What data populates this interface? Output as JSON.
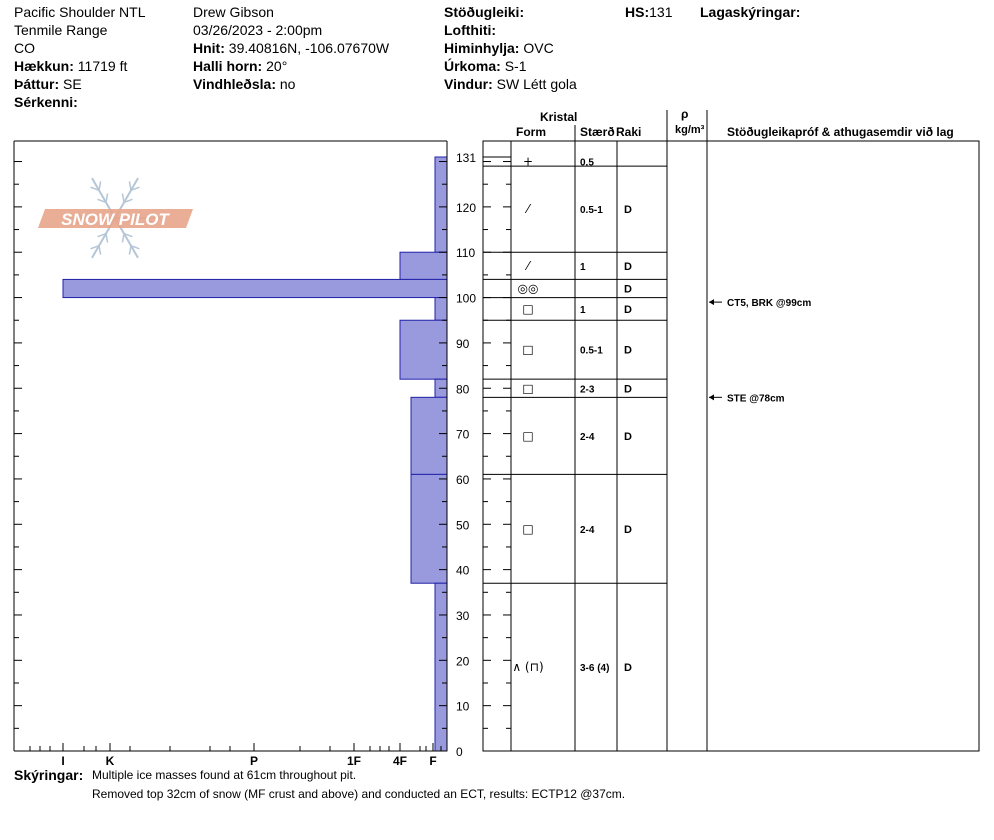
{
  "header": {
    "location": "Pacific Shoulder NTL",
    "range": "Tenmile Range",
    "state": "CO",
    "elevation_label": "Hækkun:",
    "elevation_value": "11719 ft",
    "aspect_label": "Þáttur:",
    "aspect_value": "SE",
    "features_label": "Sérkenni:",
    "observer": "Drew Gibson",
    "datetime": "03/26/2023 - 2:00pm",
    "coords_label": "Hnit:",
    "coords_value": "39.40816N, -106.07670W",
    "slope_label": "Halli horn:",
    "slope_value": "20°",
    "wind_loading_label": "Vindhleðsla:",
    "wind_loading_value": "no",
    "stability_label": "Stöðugleiki:",
    "air_temp_label": "Lofthiti:",
    "sky_label": "Himinhylja:",
    "sky_value": "OVC",
    "precip_label": "Úrkoma:",
    "precip_value": "S-1",
    "wind_label": "Vindur:",
    "wind_value": "SW Létt gola",
    "hs_label": "HS:",
    "hs_value": "131",
    "layer_notes_label": "Lagaskýringar:"
  },
  "table_header": {
    "crystal": "Kristal",
    "form": "Form",
    "size": "Stærð",
    "moisture": "Raki",
    "rho": "ρ",
    "density_unit": "kg/m³",
    "tests": "Stöðugleikapróf & athugasemdir við lag"
  },
  "logo_text": "SNOW PILOT",
  "footer": {
    "label": "Skýringar:",
    "line1": "Multiple ice masses found at 61cm throughout pit.",
    "line2": "Removed top 32cm of snow (MF crust and above) and conducted an ECT, results: ECTP12 @37cm."
  },
  "chart_data": {
    "type": "bar",
    "orientation": "horizontal",
    "y_axis": {
      "range": [
        0,
        131
      ],
      "ticks": [
        0,
        10,
        20,
        30,
        40,
        50,
        60,
        70,
        80,
        90,
        100,
        110,
        120,
        131
      ]
    },
    "x_axis_hardness": {
      "ticks": [
        "I",
        "K",
        "P",
        "1F",
        "4F",
        "F"
      ]
    },
    "layers": [
      {
        "top": 131,
        "bottom": 110,
        "hardness": "F"
      },
      {
        "top": 110,
        "bottom": 104,
        "hardness": "4F"
      },
      {
        "top": 104,
        "bottom": 100,
        "hardness": "I"
      },
      {
        "top": 100,
        "bottom": 95,
        "hardness": "F"
      },
      {
        "top": 95,
        "bottom": 82,
        "hardness": "4F"
      },
      {
        "top": 82,
        "bottom": 78,
        "hardness": "F"
      },
      {
        "top": 78,
        "bottom": 61,
        "hardness": "4F-"
      },
      {
        "top": 61,
        "bottom": 37,
        "hardness": "4F-"
      },
      {
        "top": 37,
        "bottom": 0,
        "hardness": "F"
      }
    ],
    "crystal_rows": [
      {
        "top": 131,
        "bottom": 129,
        "form": "+",
        "size": "0.5",
        "moisture": ""
      },
      {
        "top": 129,
        "bottom": 110,
        "form": "⁄",
        "size": "0.5-1",
        "moisture": "D"
      },
      {
        "top": 110,
        "bottom": 104,
        "form": "⁄",
        "size": "1",
        "moisture": "D"
      },
      {
        "top": 104,
        "bottom": 100,
        "form": "◎◎",
        "size": "",
        "moisture": "D"
      },
      {
        "top": 100,
        "bottom": 95,
        "form": "□",
        "size": "1",
        "moisture": "D"
      },
      {
        "top": 95,
        "bottom": 82,
        "form": "□",
        "size": "0.5-1",
        "moisture": "D"
      },
      {
        "top": 82,
        "bottom": 78,
        "form": "□",
        "size": "2-3",
        "moisture": "D"
      },
      {
        "top": 78,
        "bottom": 61,
        "form": "□",
        "size": "2-4",
        "moisture": "D"
      },
      {
        "top": 61,
        "bottom": 37,
        "form": "□",
        "size": "2-4",
        "moisture": "D"
      },
      {
        "top": 37,
        "bottom": 0,
        "form": "∧ (⊓)",
        "size": "3-6 (4)",
        "moisture": "D"
      }
    ],
    "test_results": [
      {
        "depth": 99,
        "text": "CT5, BRK @99cm"
      },
      {
        "depth": 78,
        "text": "STE @78cm"
      }
    ]
  },
  "colors": {
    "bar_fill": "#9999dd",
    "bar_stroke": "#2222aa",
    "logo": "#e8a48a",
    "snowflake": "#b5c6d6"
  }
}
